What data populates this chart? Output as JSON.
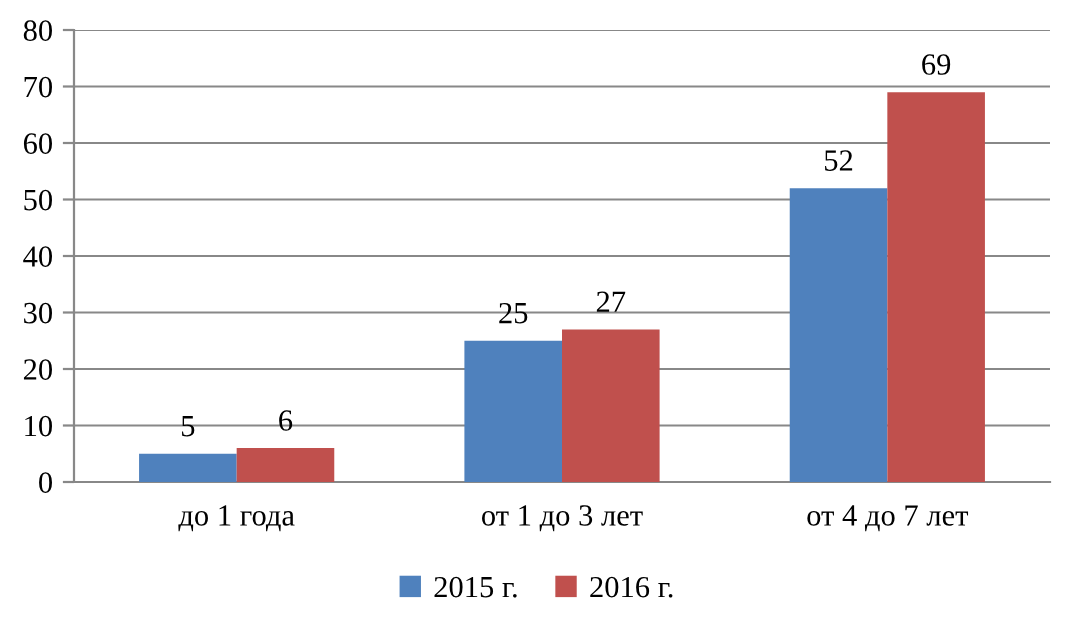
{
  "chart_data": {
    "type": "bar",
    "categories": [
      "до 1 года",
      "от 1 до 3 лет",
      "от 4 до 7 лет"
    ],
    "series": [
      {
        "name": "2015 г.",
        "color": "#4f81bd",
        "values": [
          5,
          25,
          52
        ]
      },
      {
        "name": "2016 г.",
        "color": "#c0504d",
        "values": [
          6,
          27,
          69
        ]
      }
    ],
    "ylim": [
      0,
      80
    ],
    "yticks": [
      0,
      10,
      20,
      30,
      40,
      50,
      60,
      70,
      80
    ],
    "grid": "y",
    "legend": "bottom",
    "data_labels": true
  }
}
